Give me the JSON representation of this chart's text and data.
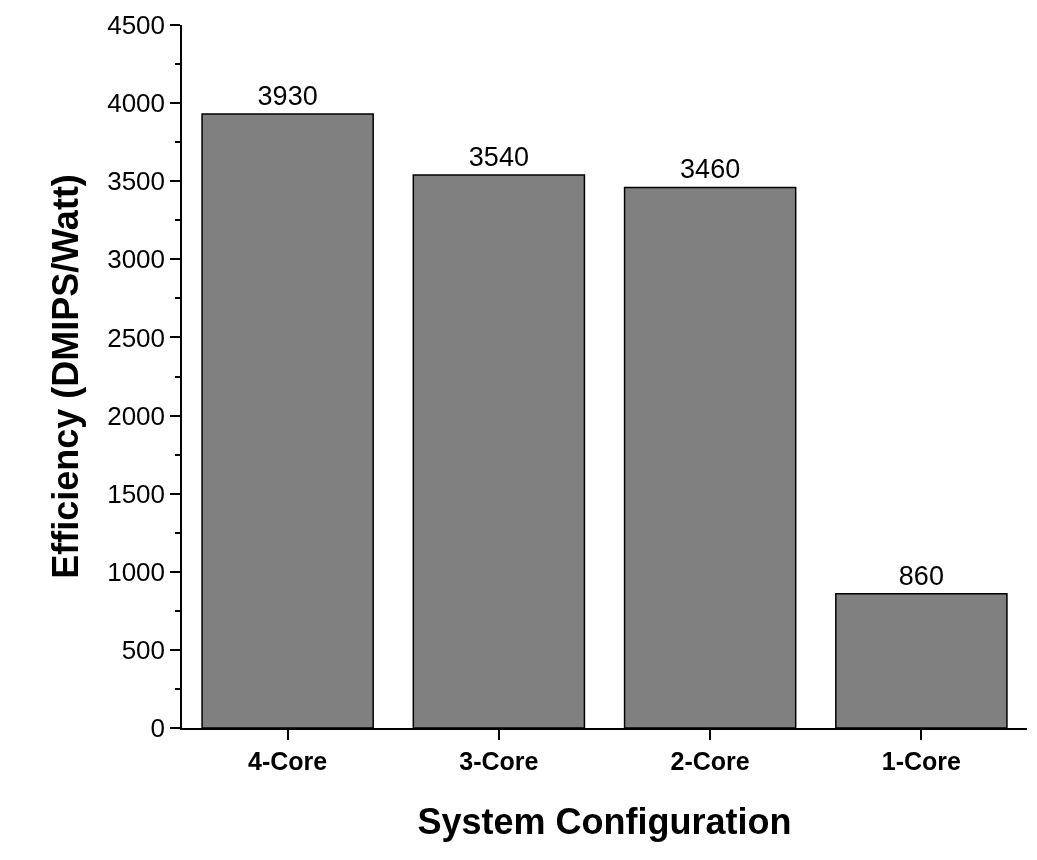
{
  "chart_data": {
    "type": "bar",
    "xlabel": "System Configuration",
    "ylabel": "Efficiency (DMIPS/Watt)",
    "categories": [
      "4-Core",
      "3-Core",
      "2-Core",
      "1-Core"
    ],
    "values": [
      3930,
      3540,
      3460,
      860
    ],
    "color": "#808080",
    "ylim": [
      0,
      4500
    ],
    "yticks": [
      0,
      {
        "value": 250,
        "label": null
      },
      500,
      {
        "value": 750,
        "label": null
      },
      1000,
      {
        "value": 1250,
        "label": null
      },
      1500,
      {
        "value": 1750,
        "label": null
      },
      2000,
      {
        "value": 2250,
        "label": null
      },
      2500,
      {
        "value": 2750,
        "label": null
      },
      3000,
      {
        "value": 3250,
        "label": null
      },
      3500,
      {
        "value": 3750,
        "label": null
      },
      4000,
      {
        "value": 4250,
        "label": null
      },
      4500
    ],
    "data_labels": true
  }
}
